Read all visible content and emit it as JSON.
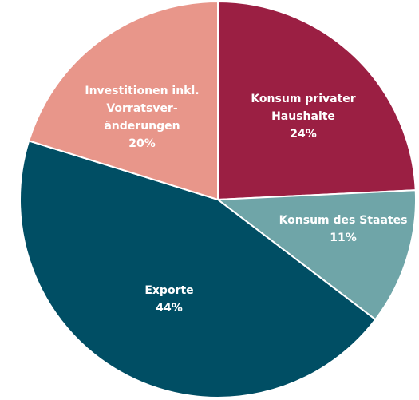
{
  "chart_data": {
    "type": "pie",
    "categories": [
      "Konsum privater\nHaushalte",
      "Konsum des Staates",
      "Exporte",
      "Investitionen inkl.\nVorratsver-\nänderungen"
    ],
    "values": [
      24,
      11,
      44,
      20
    ],
    "value_labels": [
      "24%",
      "11%",
      "44%",
      "20%"
    ],
    "colors": [
      "#9b1f43",
      "#6fa5a8",
      "#004e64",
      "#e8968a"
    ]
  }
}
